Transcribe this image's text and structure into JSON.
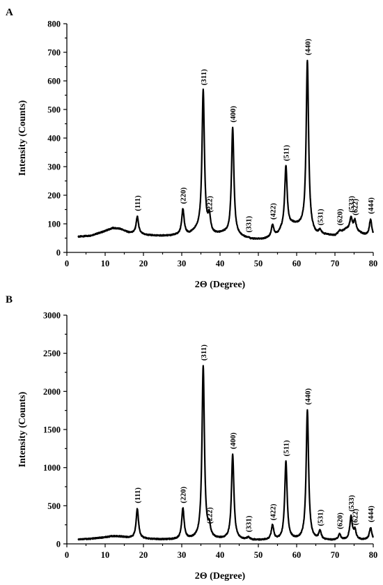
{
  "chart_data": [
    {
      "panel": "A",
      "type": "line",
      "title": "",
      "xlabel": "2Θ (Degree)",
      "ylabel": "Intensity (Counts)",
      "xlim": [
        0,
        80
      ],
      "ylim": [
        0,
        800
      ],
      "xticks": [
        0,
        10,
        20,
        30,
        40,
        50,
        60,
        70,
        80
      ],
      "yticks": [
        0,
        100,
        200,
        300,
        400,
        500,
        600,
        700,
        800
      ],
      "grid": false,
      "baseline": [
        [
          3,
          55
        ],
        [
          6,
          58
        ],
        [
          9,
          70
        ],
        [
          12,
          85
        ],
        [
          14,
          82
        ],
        [
          16,
          70
        ],
        [
          18,
          65
        ],
        [
          21,
          60
        ],
        [
          24,
          58
        ],
        [
          27,
          58
        ],
        [
          29,
          60
        ],
        [
          32,
          62
        ],
        [
          34,
          75
        ],
        [
          38,
          60
        ],
        [
          41,
          65
        ],
        [
          45,
          55
        ],
        [
          48,
          45
        ],
        [
          51,
          45
        ],
        [
          53,
          50
        ],
        [
          55,
          60
        ],
        [
          56,
          75
        ],
        [
          59,
          95
        ],
        [
          61,
          90
        ],
        [
          65,
          60
        ],
        [
          68,
          60
        ],
        [
          70,
          58
        ],
        [
          73,
          80
        ],
        [
          76,
          70
        ],
        [
          78,
          60
        ],
        [
          80,
          55
        ]
      ],
      "peaks": [
        {
          "x": 18.4,
          "y": 125,
          "label": "(111)"
        },
        {
          "x": 30.3,
          "y": 150,
          "label": "(220)"
        },
        {
          "x": 35.6,
          "y": 565,
          "label": "(311)"
        },
        {
          "x": 37.2,
          "y": 120,
          "label": "(222)"
        },
        {
          "x": 43.3,
          "y": 435,
          "label": "(400)"
        },
        {
          "x": 47.4,
          "y": 50,
          "label": "(331)"
        },
        {
          "x": 53.7,
          "y": 95,
          "label": "(422)"
        },
        {
          "x": 57.2,
          "y": 300,
          "label": "(511)"
        },
        {
          "x": 62.8,
          "y": 670,
          "label": "(440)"
        },
        {
          "x": 66.1,
          "y": 75,
          "label": "(531)"
        },
        {
          "x": 71.2,
          "y": 75,
          "label": "(620)"
        },
        {
          "x": 74.2,
          "y": 120,
          "label": "(533)"
        },
        {
          "x": 75.2,
          "y": 110,
          "label": "(622)"
        },
        {
          "x": 79.3,
          "y": 115,
          "label": "(444)"
        }
      ]
    },
    {
      "panel": "B",
      "type": "line",
      "title": "",
      "xlabel": "2Θ (Degree)",
      "ylabel": "Intensity (Counts)",
      "xlim": [
        0,
        80
      ],
      "ylim": [
        0,
        3000
      ],
      "xticks": [
        0,
        10,
        20,
        30,
        40,
        50,
        60,
        70,
        80
      ],
      "yticks": [
        0,
        500,
        1000,
        1500,
        2000,
        2500,
        3000
      ],
      "grid": false,
      "baseline": [
        [
          3,
          60
        ],
        [
          6,
          65
        ],
        [
          9,
          80
        ],
        [
          12,
          100
        ],
        [
          14,
          95
        ],
        [
          16,
          80
        ],
        [
          18,
          70
        ],
        [
          22,
          60
        ],
        [
          26,
          55
        ],
        [
          30,
          55
        ],
        [
          34,
          58
        ],
        [
          38,
          55
        ],
        [
          42,
          55
        ],
        [
          46,
          50
        ],
        [
          50,
          45
        ],
        [
          54,
          45
        ],
        [
          58,
          50
        ],
        [
          62,
          50
        ],
        [
          66,
          45
        ],
        [
          70,
          45
        ],
        [
          74,
          50
        ],
        [
          78,
          50
        ],
        [
          80,
          45
        ]
      ],
      "peaks": [
        {
          "x": 18.4,
          "y": 460,
          "label": "(111)"
        },
        {
          "x": 30.3,
          "y": 460,
          "label": "(220)"
        },
        {
          "x": 35.6,
          "y": 2330,
          "label": "(311)"
        },
        {
          "x": 37.2,
          "y": 190,
          "label": "(222)"
        },
        {
          "x": 43.3,
          "y": 1170,
          "label": "(400)"
        },
        {
          "x": 47.4,
          "y": 80,
          "label": "(331)"
        },
        {
          "x": 53.7,
          "y": 235,
          "label": "(422)"
        },
        {
          "x": 57.2,
          "y": 1075,
          "label": "(511)"
        },
        {
          "x": 62.8,
          "y": 1750,
          "label": "(440)"
        },
        {
          "x": 66.1,
          "y": 160,
          "label": "(531)"
        },
        {
          "x": 71.2,
          "y": 120,
          "label": "(620)"
        },
        {
          "x": 74.2,
          "y": 350,
          "label": "(533)"
        },
        {
          "x": 75.2,
          "y": 170,
          "label": "(622)"
        },
        {
          "x": 79.3,
          "y": 210,
          "label": "(444)"
        }
      ]
    }
  ]
}
